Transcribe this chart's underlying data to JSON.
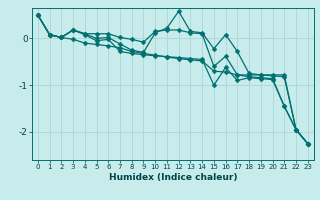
{
  "xlabel": "Humidex (Indice chaleur)",
  "ylabel": "",
  "bg_color": "#c8ecec",
  "grid_color": "#b0d8d8",
  "line_color": "#007070",
  "xlim": [
    -0.5,
    23.5
  ],
  "ylim": [
    -2.6,
    0.65
  ],
  "yticks": [
    -2,
    -1,
    0
  ],
  "xticks": [
    0,
    1,
    2,
    3,
    4,
    5,
    6,
    7,
    8,
    9,
    10,
    11,
    12,
    13,
    14,
    15,
    16,
    17,
    18,
    19,
    20,
    21,
    22,
    23
  ],
  "lines": [
    [
      0.5,
      0.08,
      0.02,
      -0.02,
      -0.1,
      -0.13,
      -0.16,
      -0.2,
      -0.28,
      -0.32,
      -0.36,
      -0.4,
      -0.43,
      -0.46,
      -0.48,
      -0.7,
      -0.72,
      -0.78,
      -0.82,
      -0.84,
      -0.86,
      -1.45,
      -1.95,
      -2.25
    ],
    [
      0.5,
      0.08,
      0.02,
      0.18,
      0.1,
      0.0,
      0.02,
      -0.12,
      -0.25,
      -0.3,
      0.12,
      0.22,
      0.58,
      0.15,
      0.12,
      -0.22,
      0.08,
      -0.28,
      -0.75,
      -0.78,
      -0.8,
      -0.82,
      -1.95,
      -2.25
    ],
    [
      0.5,
      0.08,
      0.02,
      0.18,
      0.08,
      -0.05,
      -0.02,
      -0.28,
      -0.32,
      -0.35,
      -0.37,
      -0.39,
      -0.41,
      -0.43,
      -0.45,
      -1.0,
      -0.62,
      -0.9,
      -0.84,
      -0.86,
      -0.88,
      -1.45,
      -1.95,
      -2.25
    ],
    [
      0.5,
      0.08,
      0.02,
      0.18,
      0.1,
      0.1,
      0.1,
      0.02,
      -0.02,
      -0.08,
      0.15,
      0.18,
      0.18,
      0.12,
      0.1,
      -0.6,
      -0.38,
      -0.78,
      -0.78,
      -0.78,
      -0.78,
      -0.78,
      -1.95,
      -2.25
    ]
  ]
}
